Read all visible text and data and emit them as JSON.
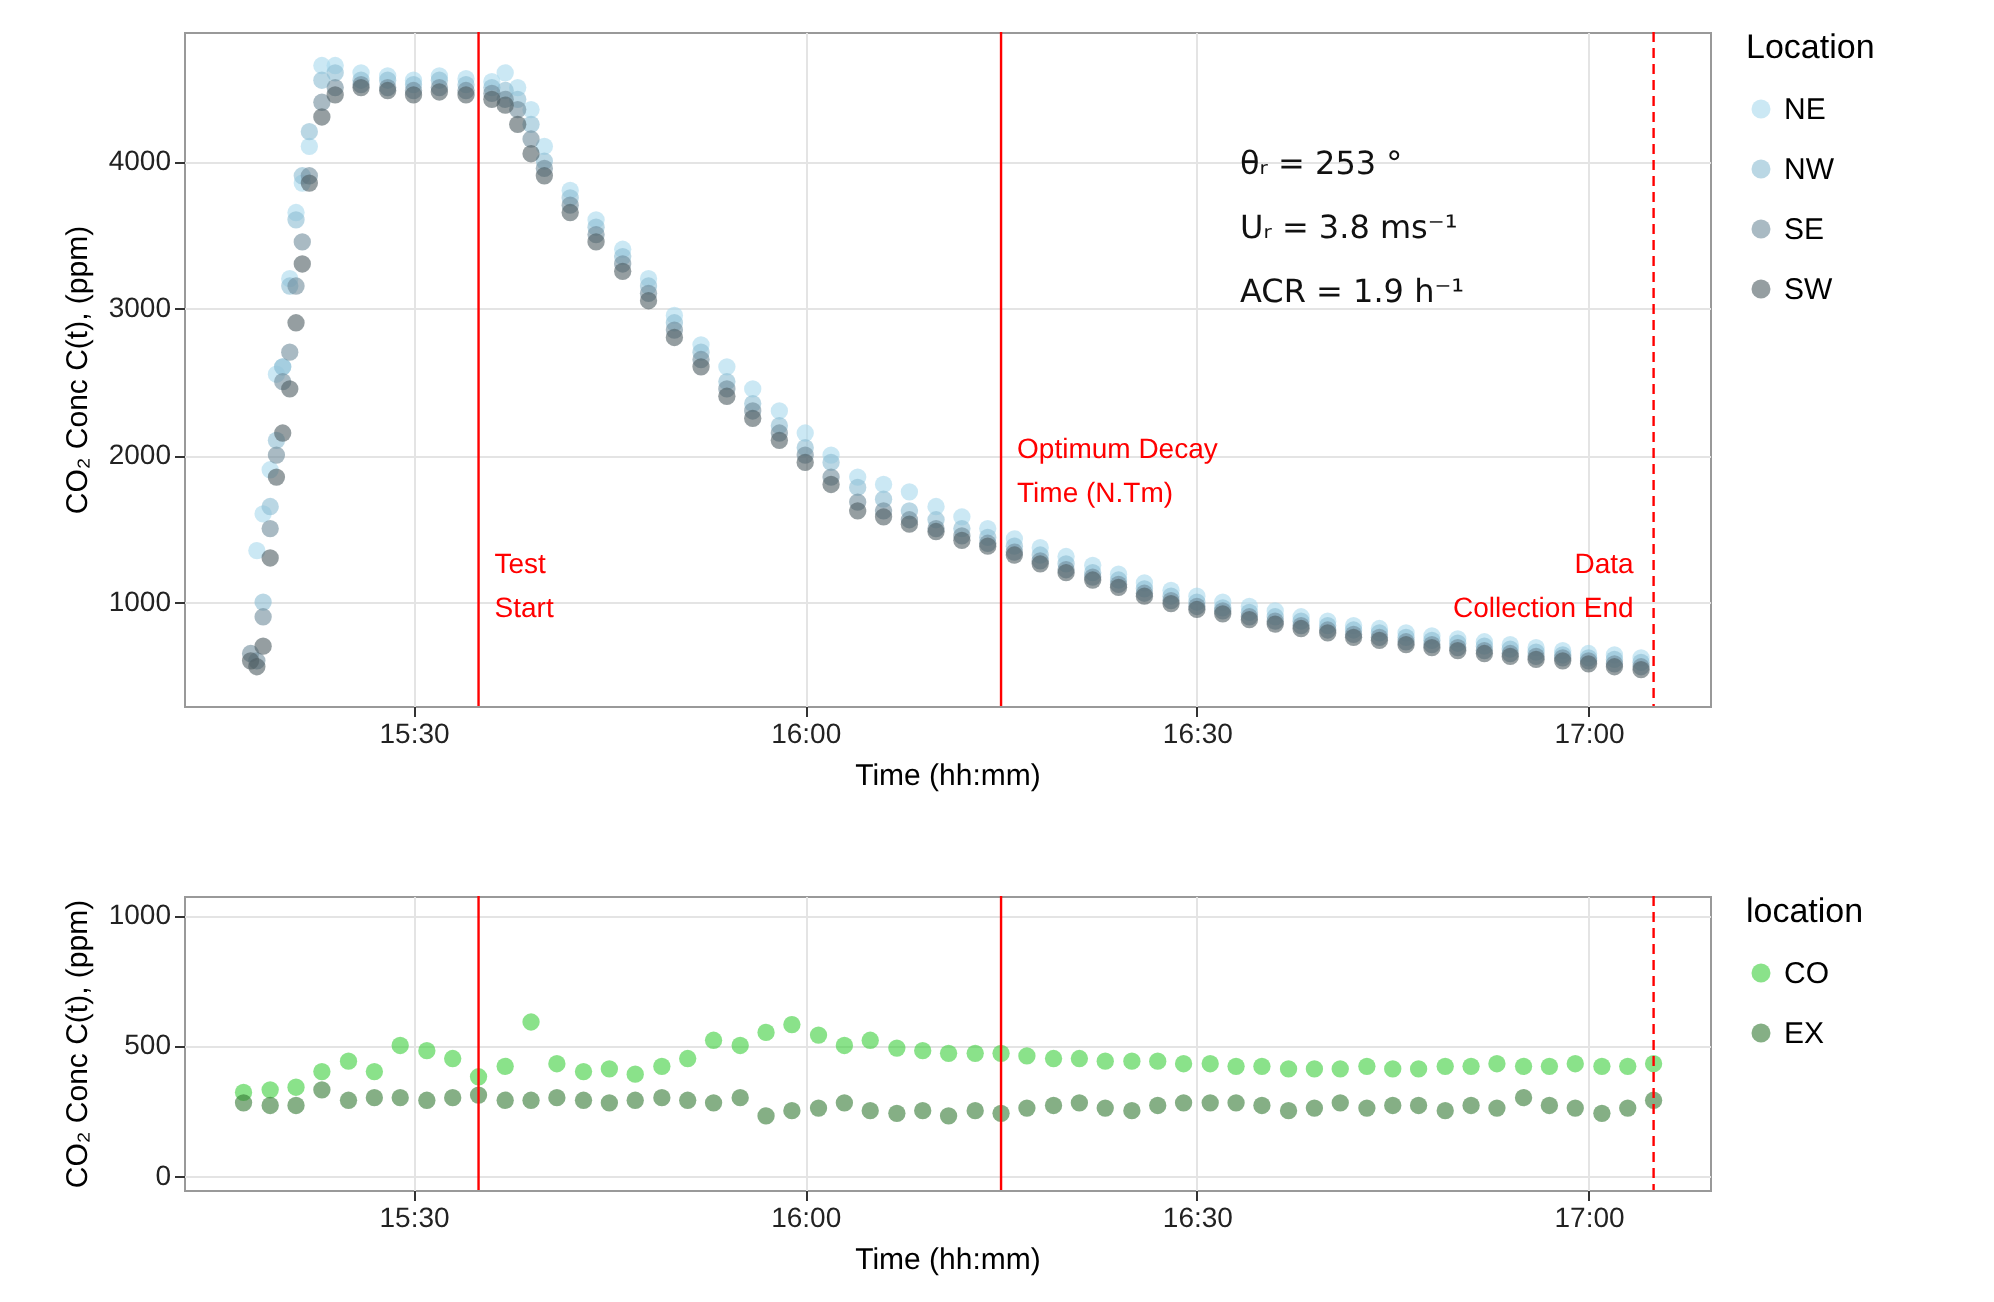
{
  "chart_data": [
    {
      "type": "scatter",
      "xlabel": "Time (hh:mm)",
      "ylabel": "CO₂ Conc C(t), (ppm)",
      "legend_title": "Location",
      "legend": "right",
      "grid": true,
      "marker": "circle",
      "annotations": [
        "θᵣ = 253 °",
        "Uᵣ = 3.8 ms⁻¹",
        "ACR = 1.9 h⁻¹"
      ],
      "xlim": [
        15.207,
        17.155
      ],
      "ylim": [
        293,
        4878
      ],
      "xticks": [
        {
          "value": 15.5,
          "label": "15:30"
        },
        {
          "value": 16,
          "label": "16:00"
        },
        {
          "value": 16.5,
          "label": "16:30"
        },
        {
          "value": 17,
          "label": "17:00"
        }
      ],
      "yticks": [
        1000,
        2000,
        3000,
        4000
      ],
      "ref_lines": [
        {
          "axis": "x",
          "value": 15.583,
          "label": "Test\nStart",
          "color": "#ff0000",
          "line_style": "solid"
        },
        {
          "axis": "x",
          "value": 16.25,
          "label": "Optimum Decay\nTime (N.Tm)",
          "color": "#ff0000",
          "line_style": "solid"
        },
        {
          "axis": "x",
          "value": 17.083,
          "label": "Data\nCollection End",
          "color": "#ff0000",
          "line_style": "dashed"
        }
      ],
      "x": [
        15.292,
        15.3,
        15.308,
        15.317,
        15.325,
        15.333,
        15.342,
        15.35,
        15.358,
        15.367,
        15.383,
        15.4,
        15.433,
        15.467,
        15.5,
        15.533,
        15.567,
        15.6,
        15.617,
        15.633,
        15.65,
        15.667,
        15.7,
        15.733,
        15.767,
        15.8,
        15.833,
        15.867,
        15.9,
        15.933,
        15.967,
        16,
        16.033,
        16.067,
        16.1,
        16.133,
        16.167,
        16.2,
        16.233,
        16.267,
        16.3,
        16.333,
        16.367,
        16.4,
        16.433,
        16.467,
        16.5,
        16.533,
        16.567,
        16.6,
        16.633,
        16.667,
        16.7,
        16.733,
        16.767,
        16.8,
        16.833,
        16.867,
        16.9,
        16.933,
        16.967,
        17,
        17.033,
        17.067
      ],
      "series": [
        {
          "name": "NE",
          "color": "#a8d8ec",
          "values": [
            null,
            1350,
            1600,
            1900,
            2550,
            2600,
            3200,
            3650,
            3850,
            4100,
            4650,
            4650,
            4600,
            4580,
            4550,
            4580,
            4560,
            4540,
            4600,
            4500,
            4350,
            4100,
            3800,
            3600,
            3400,
            3200,
            2950,
            2750,
            2600,
            2450,
            2300,
            2150,
            2000,
            1850,
            1800,
            1750,
            1650,
            1580,
            1500,
            1430,
            1370,
            1310,
            1250,
            1190,
            1130,
            1080,
            1040,
            1000,
            970,
            940,
            900,
            870,
            840,
            820,
            790,
            770,
            750,
            730,
            710,
            690,
            670,
            650,
            640,
            620
          ]
        },
        {
          "name": "NW",
          "color": "#8cbcd2",
          "values": [
            null,
            null,
            1000,
            1650,
            2100,
            2600,
            3150,
            3600,
            3900,
            4200,
            4550,
            4600,
            4550,
            4550,
            4520,
            4550,
            4520,
            4500,
            4480,
            4420,
            4250,
            4000,
            3750,
            3550,
            3350,
            3150,
            2900,
            2700,
            2500,
            2350,
            2200,
            2050,
            1950,
            1780,
            1700,
            1620,
            1560,
            1500,
            1440,
            1380,
            1320,
            1260,
            1200,
            1150,
            1090,
            1040,
            1000,
            960,
            930,
            900,
            870,
            840,
            810,
            790,
            760,
            740,
            720,
            700,
            680,
            660,
            640,
            620,
            610,
            590
          ]
        },
        {
          "name": "SE",
          "color": "#6f8c9b",
          "values": [
            650,
            600,
            900,
            1500,
            2000,
            2500,
            2700,
            3150,
            3450,
            3900,
            4400,
            4500,
            4520,
            4500,
            4480,
            4500,
            4480,
            4460,
            4420,
            4350,
            4150,
            3950,
            3700,
            3500,
            3300,
            3100,
            2850,
            2650,
            2450,
            2300,
            2150,
            2000,
            1850,
            1680,
            1620,
            1560,
            1500,
            1450,
            1400,
            1340,
            1280,
            1220,
            1170,
            1120,
            1060,
            1010,
            970,
            940,
            900,
            870,
            840,
            810,
            780,
            760,
            730,
            710,
            690,
            670,
            650,
            630,
            620,
            600,
            580,
            560
          ]
        },
        {
          "name": "SW",
          "color": "#4e5d63",
          "values": [
            600,
            560,
            700,
            1300,
            1850,
            2150,
            2450,
            2900,
            3300,
            3850,
            4300,
            4450,
            4500,
            4480,
            4450,
            4470,
            4450,
            4420,
            4380,
            4250,
            4050,
            3900,
            3650,
            3450,
            3250,
            3050,
            2800,
            2600,
            2400,
            2250,
            2100,
            1950,
            1800,
            1620,
            1580,
            1530,
            1480,
            1420,
            1380,
            1320,
            1260,
            1200,
            1150,
            1100,
            1040,
            990,
            950,
            920,
            880,
            850,
            820,
            790,
            760,
            740,
            710,
            690,
            670,
            650,
            630,
            610,
            600,
            580,
            560,
            540
          ]
        }
      ]
    },
    {
      "type": "scatter",
      "xlabel": "Time (hh:mm)",
      "ylabel": "CO₂ Conc C(t), (ppm)",
      "legend_title": "location",
      "legend": "right",
      "grid": true,
      "marker": "circle",
      "xlim": [
        15.207,
        17.155
      ],
      "ylim": [
        -54,
        1073
      ],
      "xticks": [
        {
          "value": 15.5,
          "label": "15:30"
        },
        {
          "value": 16,
          "label": "16:00"
        },
        {
          "value": 16.5,
          "label": "16:30"
        },
        {
          "value": 17,
          "label": "17:00"
        }
      ],
      "yticks": [
        0,
        500,
        1000
      ],
      "ref_lines": [
        {
          "axis": "x",
          "value": 15.583,
          "color": "#ff0000",
          "line_style": "solid"
        },
        {
          "axis": "x",
          "value": 16.25,
          "color": "#ff0000",
          "line_style": "solid"
        },
        {
          "axis": "x",
          "value": 17.083,
          "color": "#ff0000",
          "line_style": "dashed"
        }
      ],
      "x": [
        15.283,
        15.317,
        15.35,
        15.383,
        15.417,
        15.45,
        15.483,
        15.517,
        15.55,
        15.583,
        15.617,
        15.65,
        15.683,
        15.717,
        15.75,
        15.783,
        15.817,
        15.85,
        15.883,
        15.917,
        15.95,
        15.983,
        16.017,
        16.05,
        16.083,
        16.117,
        16.15,
        16.183,
        16.217,
        16.25,
        16.283,
        16.317,
        16.35,
        16.383,
        16.417,
        16.45,
        16.483,
        16.517,
        16.55,
        16.583,
        16.617,
        16.65,
        16.683,
        16.717,
        16.75,
        16.783,
        16.817,
        16.85,
        16.883,
        16.917,
        16.95,
        16.983,
        17.017,
        17.05,
        17.083
      ],
      "series": [
        {
          "name": "CO",
          "color": "#3ccf3c",
          "values": [
            320,
            330,
            340,
            400,
            440,
            400,
            500,
            480,
            450,
            380,
            420,
            590,
            430,
            400,
            410,
            390,
            420,
            450,
            520,
            500,
            550,
            580,
            540,
            500,
            520,
            490,
            480,
            470,
            470,
            470,
            460,
            450,
            450,
            440,
            440,
            440,
            430,
            430,
            420,
            420,
            410,
            410,
            410,
            420,
            410,
            410,
            420,
            420,
            430,
            420,
            420,
            430,
            420,
            420,
            430
          ]
        },
        {
          "name": "EX",
          "color": "#347a34",
          "values": [
            280,
            270,
            270,
            330,
            290,
            300,
            300,
            290,
            300,
            310,
            290,
            290,
            300,
            290,
            280,
            290,
            300,
            290,
            280,
            300,
            230,
            250,
            260,
            280,
            250,
            240,
            250,
            230,
            250,
            240,
            260,
            270,
            280,
            260,
            250,
            270,
            280,
            280,
            280,
            270,
            250,
            260,
            280,
            260,
            270,
            270,
            250,
            270,
            260,
            300,
            270,
            260,
            240,
            260,
            290
          ]
        }
      ]
    }
  ]
}
